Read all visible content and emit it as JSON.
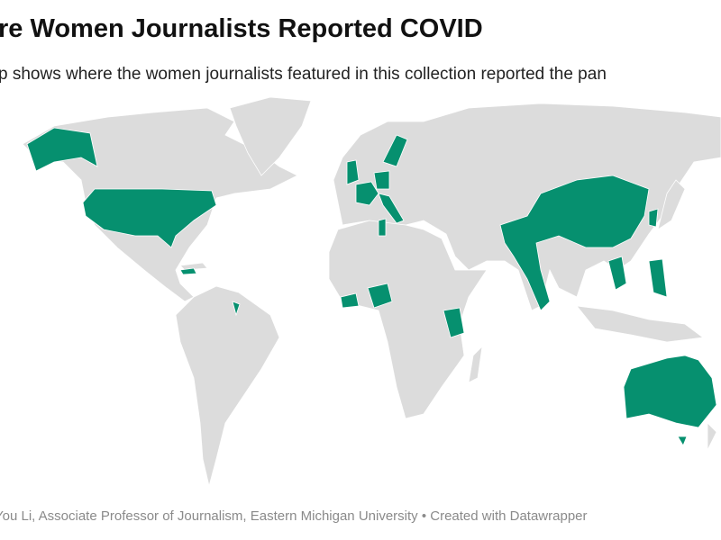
{
  "title": "re Women Journalists Reported COVID",
  "subtitle": "p shows where the women journalists featured in this collection reported the pan",
  "footer": "You Li, Associate Professor of Journalism, Eastern Michigan University • Created with Datawrapper"
}
